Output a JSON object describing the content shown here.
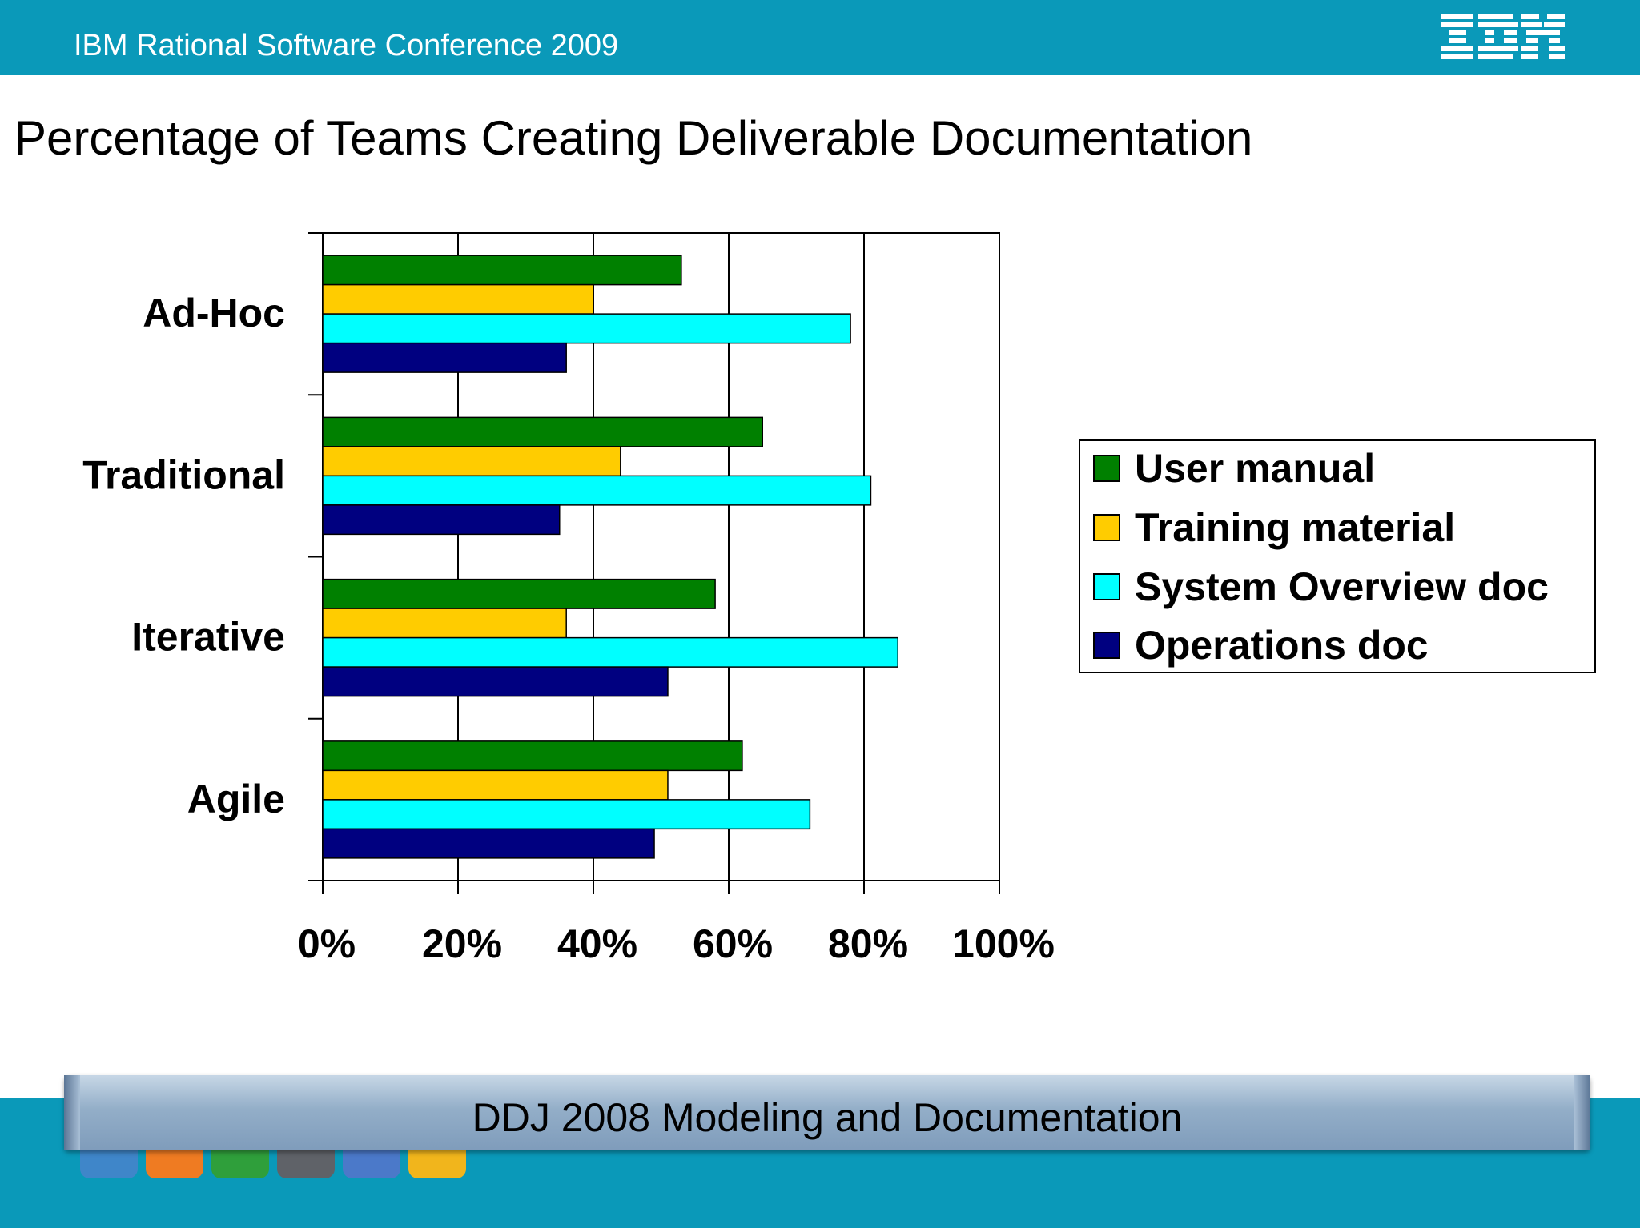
{
  "header": {
    "conference": "IBM Rational Software Conference 2009",
    "logo_text": "IBM"
  },
  "slide": {
    "title": "Percentage of Teams Creating Deliverable Documentation"
  },
  "footer": {
    "caption": "DDJ 2008 Modeling and Documentation"
  },
  "dock": {
    "icons": [
      "apps-icon",
      "presenter-icon",
      "book-icon",
      "folder-icon",
      "speaker-icon",
      "pause-icon"
    ]
  },
  "colors": {
    "header_bg": "#0a99b9",
    "user_manual": "#008000",
    "training_material": "#ffcc00",
    "system_overview": "#00ffff",
    "operations": "#000080"
  },
  "chart_data": {
    "type": "bar",
    "orientation": "horizontal",
    "title": "",
    "categories": [
      "Ad-Hoc",
      "Traditional",
      "Iterative",
      "Agile"
    ],
    "series": [
      {
        "name": "User manual",
        "color": "#008000",
        "values": [
          53,
          65,
          58,
          62
        ]
      },
      {
        "name": "Training material",
        "color": "#ffcc00",
        "values": [
          40,
          44,
          36,
          51
        ]
      },
      {
        "name": "System Overview doc",
        "color": "#00ffff",
        "values": [
          78,
          81,
          85,
          72
        ]
      },
      {
        "name": "Operations doc",
        "color": "#000080",
        "values": [
          36,
          35,
          51,
          49
        ]
      }
    ],
    "xlim": [
      0,
      100
    ],
    "xticks": [
      "0%",
      "20%",
      "40%",
      "60%",
      "80%",
      "100%"
    ],
    "grid": true,
    "legend_position": "right"
  }
}
